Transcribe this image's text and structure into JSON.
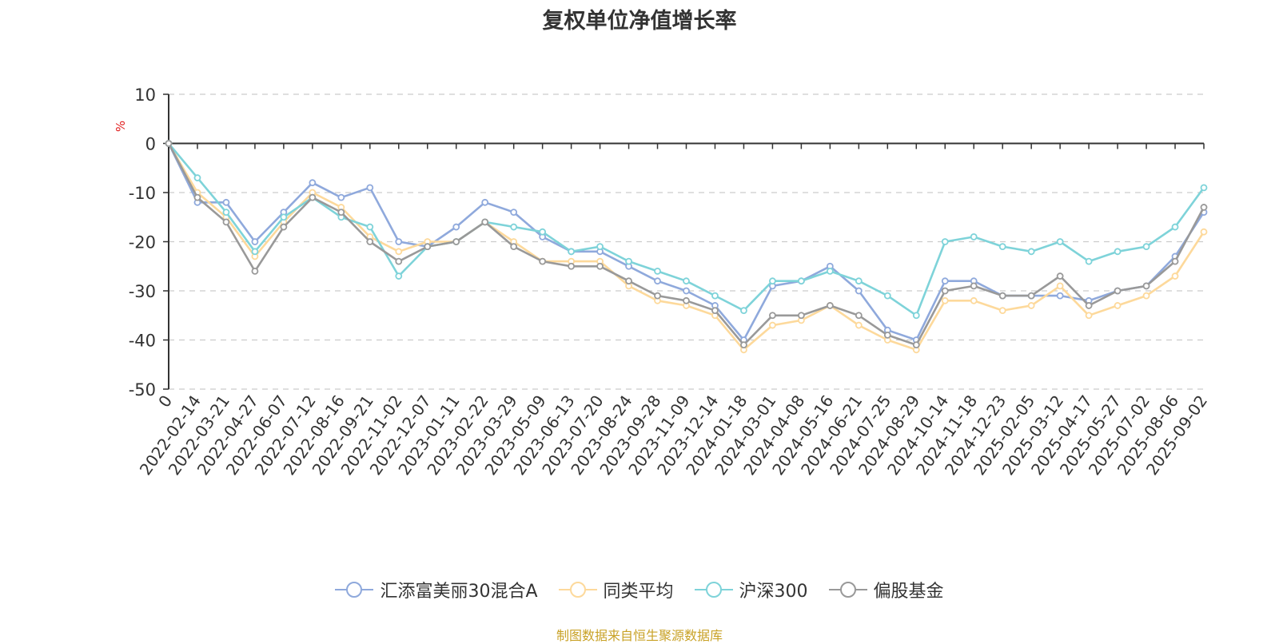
{
  "chart_data": {
    "type": "line",
    "title": "复权单位净值增长率",
    "ylabel": "%",
    "xlabel": "",
    "ylim": [
      -50,
      10
    ],
    "y_ticks": [
      10,
      0,
      -10,
      -20,
      -30,
      -40,
      -50
    ],
    "grid": "horizontal dashed",
    "legend_position": "bottom-center",
    "x_tick_labels": [
      "0",
      "2022-02-14",
      "2022-03-21",
      "2022-04-27",
      "2022-06-07",
      "2022-07-12",
      "2022-08-16",
      "2022-09-21",
      "2022-11-02",
      "2022-12-07",
      "2023-01-11",
      "2023-02-22",
      "2023-03-29",
      "2023-05-09",
      "2023-06-13",
      "2023-07-20",
      "2023-08-24",
      "2023-09-28",
      "2023-11-09",
      "2023-12-14",
      "2024-01-18",
      "2024-03-01",
      "2024-04-08",
      "2024-05-16",
      "2024-06-21",
      "2024-07-25",
      "2024-08-29",
      "2024-10-14",
      "2024-11-18",
      "2024-12-23",
      "2025-02-05",
      "2025-03-12",
      "2025-04-17",
      "2025-05-27",
      "2025-07-02",
      "2025-08-06",
      "2025-09-02"
    ],
    "series": [
      {
        "name": "汇添富美丽30混合A",
        "color": "#8fa9dc",
        "values": [
          0,
          -12,
          -12,
          -20,
          -14,
          -8,
          -11,
          -9,
          -20,
          -21,
          -17,
          -12,
          -14,
          -19,
          -22,
          -22,
          -25,
          -28,
          -30,
          -33,
          -40,
          -29,
          -28,
          -25,
          -30,
          -38,
          -40,
          -28,
          -28,
          -31,
          -31,
          -31,
          -32,
          -30,
          -29,
          -23,
          -14
        ]
      },
      {
        "name": "同类平均",
        "color": "#fdd99b",
        "values": [
          0,
          -10,
          -15,
          -23,
          -16,
          -10,
          -13,
          -19,
          -22,
          -20,
          -20,
          -16,
          -20,
          -24,
          -24,
          -24,
          -29,
          -32,
          -33,
          -35,
          -42,
          -37,
          -36,
          -33,
          -37,
          -40,
          -42,
          -32,
          -32,
          -34,
          -33,
          -29,
          -35,
          -33,
          -31,
          -27,
          -18
        ]
      },
      {
        "name": "沪深300",
        "color": "#7ed3d9",
        "values": [
          0,
          -7,
          -14,
          -22,
          -15,
          -11,
          -15,
          -17,
          -27,
          -21,
          -20,
          -16,
          -17,
          -18,
          -22,
          -21,
          -24,
          -26,
          -28,
          -31,
          -34,
          -28,
          -28,
          -26,
          -28,
          -31,
          -35,
          -20,
          -19,
          -21,
          -22,
          -20,
          -24,
          -22,
          -21,
          -17,
          -9
        ]
      },
      {
        "name": "偏股基金",
        "color": "#999999",
        "values": [
          0,
          -11,
          -16,
          -26,
          -17,
          -11,
          -14,
          -20,
          -24,
          -21,
          -20,
          -16,
          -21,
          -24,
          -25,
          -25,
          -28,
          -31,
          -32,
          -34,
          -41,
          -35,
          -35,
          -33,
          -35,
          -39,
          -41,
          -30,
          -29,
          -31,
          -31,
          -27,
          -33,
          -30,
          -29,
          -24,
          -13
        ]
      }
    ],
    "source": "制图数据来自恒生聚源数据库"
  }
}
